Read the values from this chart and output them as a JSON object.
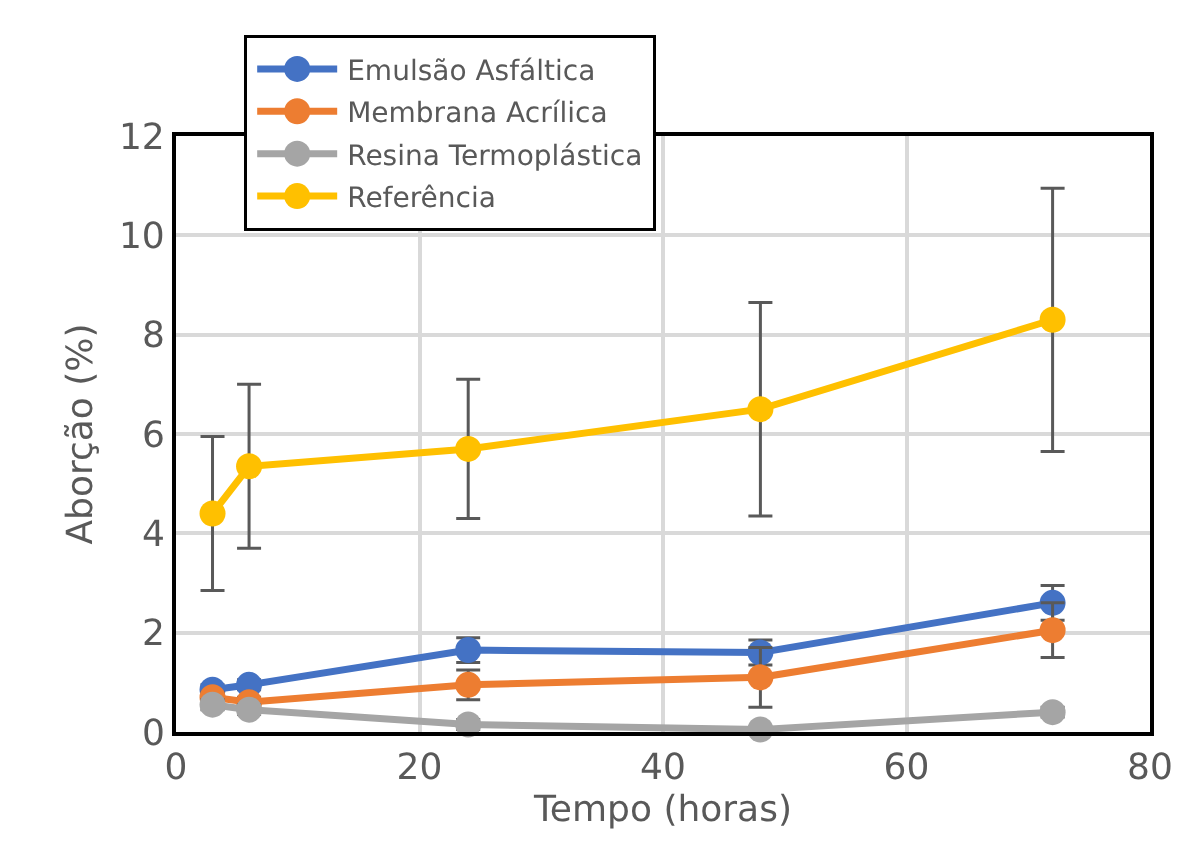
{
  "chart_data": {
    "type": "line",
    "xlabel": "Tempo (horas)",
    "ylabel": "Aborção (%)",
    "x": [
      3,
      6,
      24,
      48,
      72
    ],
    "series": [
      {
        "name": "Emulsão Asfáltica",
        "color": "#4472c4",
        "values": [
          0.85,
          0.95,
          1.65,
          1.6,
          2.6
        ],
        "errors": [
          0.1,
          0.1,
          0.25,
          0.25,
          0.35
        ]
      },
      {
        "name": "Membrana Acrílica",
        "color": "#ed7d31",
        "values": [
          0.7,
          0.6,
          0.95,
          1.1,
          2.05
        ],
        "errors": [
          0.1,
          0.1,
          0.3,
          0.6,
          0.55
        ]
      },
      {
        "name": "Resina Termoplástica",
        "color": "#a5a5a5",
        "values": [
          0.55,
          0.45,
          0.15,
          0.05,
          0.4
        ],
        "errors": [
          0.1,
          0.1,
          0.1,
          0.05,
          0.1
        ]
      },
      {
        "name": "Referência",
        "color": "#ffc000",
        "values": [
          4.4,
          5.35,
          5.7,
          6.5,
          8.3
        ],
        "errors": [
          1.55,
          1.65,
          1.4,
          2.15,
          2.65
        ]
      }
    ],
    "xlim": [
      0,
      80
    ],
    "xticks": [
      0,
      20,
      40,
      60,
      80
    ],
    "ylim": [
      0,
      12
    ],
    "yticks": [
      0,
      2,
      4,
      6,
      8,
      10,
      12
    ],
    "grid": true,
    "legend": "top",
    "marker": "circle",
    "line_style": "solid"
  }
}
